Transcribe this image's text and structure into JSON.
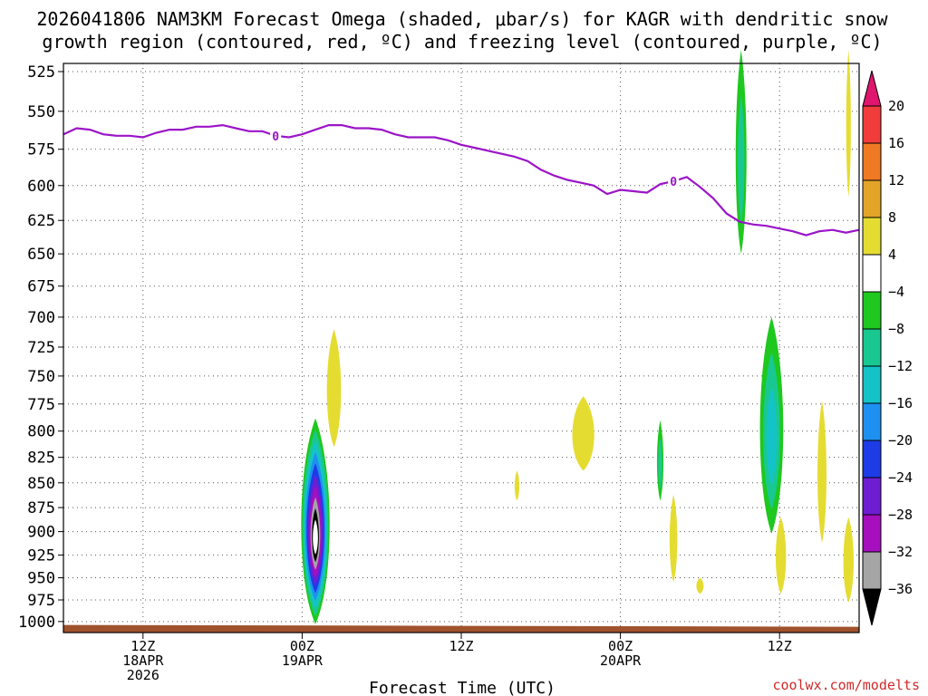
{
  "chart_data": {
    "type": "heatmap",
    "title_lines": [
      "2026041806 NAM3KM Forecast Omega (shaded, μbar/s) for KAGR with dendritic snow",
      "growth region (contoured, red, ºC) and freezing level (contoured, purple, ºC)"
    ],
    "xlabel": "Forecast Time (UTC)",
    "credit": "coolwx.com/modelts",
    "x_range_hours": [
      0,
      60
    ],
    "x_ticks": [
      {
        "hour": 6,
        "lines": [
          "12Z",
          "18APR",
          "2026"
        ]
      },
      {
        "hour": 18,
        "lines": [
          "00Z",
          "19APR"
        ]
      },
      {
        "hour": 30,
        "lines": [
          "12Z"
        ]
      },
      {
        "hour": 42,
        "lines": [
          "00Z",
          "20APR"
        ]
      },
      {
        "hour": 54,
        "lines": [
          "12Z"
        ]
      }
    ],
    "y_range_mb": [
      520,
      1013
    ],
    "y_ticks": [
      "525",
      "550",
      "575",
      "600",
      "625",
      "650",
      "675",
      "700",
      "725",
      "750",
      "775",
      "800",
      "825",
      "850",
      "875",
      "900",
      "925",
      "950",
      "975",
      "1000"
    ],
    "colorbar": {
      "levels": [
        "20",
        "16",
        "12",
        "8",
        "4",
        "−4",
        "−8",
        "−12",
        "−16",
        "−20",
        "−24",
        "−28",
        "−32",
        "−36"
      ],
      "bins": [
        {
          "from": 20,
          "to": 24,
          "color": "#e0156e"
        },
        {
          "from": 16,
          "to": 20,
          "color": "#f23c3c"
        },
        {
          "from": 12,
          "to": 16,
          "color": "#f07a23"
        },
        {
          "from": 8,
          "to": 12,
          "color": "#e3a428"
        },
        {
          "from": 4,
          "to": 8,
          "color": "#e5dc32"
        },
        {
          "from": -4,
          "to": 4,
          "color": "#ffffff"
        },
        {
          "from": -8,
          "to": -4,
          "color": "#1ec81e"
        },
        {
          "from": -12,
          "to": -8,
          "color": "#19c891"
        },
        {
          "from": -16,
          "to": -12,
          "color": "#14c3c8"
        },
        {
          "from": -20,
          "to": -16,
          "color": "#1e91f0"
        },
        {
          "from": -24,
          "to": -20,
          "color": "#1e3ce6"
        },
        {
          "from": -28,
          "to": -24,
          "color": "#6e1ed2"
        },
        {
          "from": -32,
          "to": -28,
          "color": "#a50fbe"
        },
        {
          "from": -36,
          "to": -32,
          "color": "#a5a5a5"
        },
        {
          "from": -40,
          "to": -36,
          "color": "#000000"
        }
      ]
    },
    "freezing_level": {
      "label": "0",
      "color": "#9b14c8",
      "label_hours": [
        16,
        46
      ],
      "points": [
        [
          0,
          565
        ],
        [
          1,
          561
        ],
        [
          2,
          562
        ],
        [
          3,
          565
        ],
        [
          4,
          566
        ],
        [
          5,
          566
        ],
        [
          6,
          567
        ],
        [
          7,
          564
        ],
        [
          8,
          562
        ],
        [
          9,
          562
        ],
        [
          10,
          560
        ],
        [
          11,
          560
        ],
        [
          12,
          559
        ],
        [
          13,
          561
        ],
        [
          14,
          563
        ],
        [
          15,
          563
        ],
        [
          16,
          566
        ],
        [
          17,
          567
        ],
        [
          18,
          565
        ],
        [
          19,
          562
        ],
        [
          20,
          559
        ],
        [
          21,
          559
        ],
        [
          22,
          561
        ],
        [
          23,
          561
        ],
        [
          24,
          562
        ],
        [
          25,
          565
        ],
        [
          26,
          567
        ],
        [
          27,
          567
        ],
        [
          28,
          567
        ],
        [
          29,
          569
        ],
        [
          30,
          572
        ],
        [
          31,
          574
        ],
        [
          32,
          576
        ],
        [
          33,
          578
        ],
        [
          34,
          580
        ],
        [
          35,
          583
        ],
        [
          36,
          589
        ],
        [
          37,
          593
        ],
        [
          38,
          596
        ],
        [
          39,
          598
        ],
        [
          40,
          600
        ],
        [
          41,
          606
        ],
        [
          42,
          603
        ],
        [
          43,
          604
        ],
        [
          44,
          605
        ],
        [
          45,
          599
        ],
        [
          46,
          597
        ],
        [
          47,
          594
        ],
        [
          48,
          601
        ],
        [
          49,
          609
        ],
        [
          50,
          620
        ],
        [
          51,
          626
        ],
        [
          52,
          628
        ],
        [
          53,
          629
        ],
        [
          54,
          631
        ],
        [
          55,
          633
        ],
        [
          56,
          636
        ],
        [
          57,
          633
        ],
        [
          58,
          632
        ],
        [
          59,
          634
        ],
        [
          60,
          632
        ]
      ]
    },
    "omega_features": [
      {
        "hour": 19.0,
        "top_mb": 788,
        "bottom_mb": 1003,
        "half_width_h": 1.1,
        "min_value": -40
      },
      {
        "hour": 20.4,
        "top_mb": 710,
        "bottom_mb": 815,
        "half_width_h": 0.55,
        "min_value": 4
      },
      {
        "hour": 34.2,
        "top_mb": 838,
        "bottom_mb": 868,
        "half_width_h": 0.18,
        "min_value": 4
      },
      {
        "hour": 39.2,
        "top_mb": 768,
        "bottom_mb": 838,
        "half_width_h": 0.85,
        "min_value": 4
      },
      {
        "hour": 45.0,
        "top_mb": 790,
        "bottom_mb": 868,
        "half_width_h": 0.25,
        "min_value": -8
      },
      {
        "hour": 46.0,
        "top_mb": 862,
        "bottom_mb": 955,
        "half_width_h": 0.3,
        "min_value": 4
      },
      {
        "hour": 48.0,
        "top_mb": 950,
        "bottom_mb": 968,
        "half_width_h": 0.28,
        "min_value": 4
      },
      {
        "hour": 51.1,
        "top_mb": 512,
        "bottom_mb": 650,
        "half_width_h": 0.42,
        "min_value": -8
      },
      {
        "hour": 53.4,
        "top_mb": 700,
        "bottom_mb": 902,
        "half_width_h": 0.9,
        "min_value": -12
      },
      {
        "hour": 54.1,
        "top_mb": 885,
        "bottom_mb": 968,
        "half_width_h": 0.4,
        "min_value": 4
      },
      {
        "hour": 57.2,
        "top_mb": 772,
        "bottom_mb": 912,
        "half_width_h": 0.35,
        "min_value": 4
      },
      {
        "hour": 59.2,
        "top_mb": 512,
        "bottom_mb": 608,
        "half_width_h": 0.18,
        "min_value": 4
      },
      {
        "hour": 59.2,
        "top_mb": 885,
        "bottom_mb": 978,
        "half_width_h": 0.4,
        "min_value": 4
      }
    ],
    "ground": {
      "color": "#a0522d",
      "label": "terrain"
    }
  }
}
